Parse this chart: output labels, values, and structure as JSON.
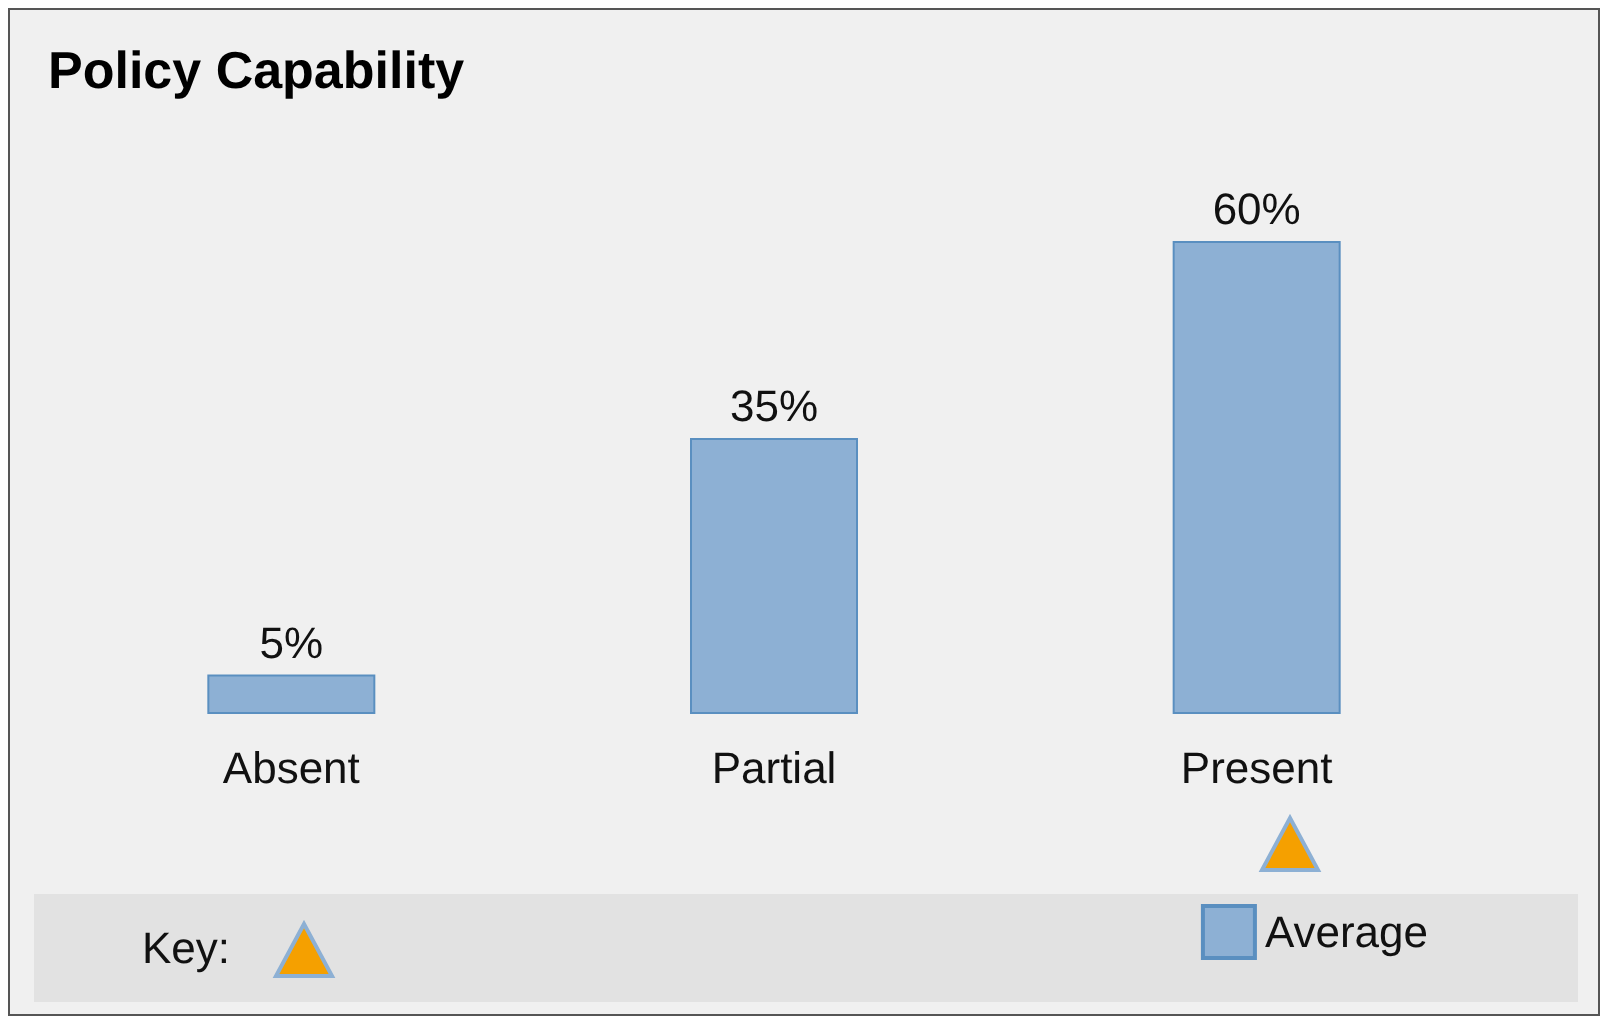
{
  "chart_data": {
    "type": "bar",
    "title": "Policy Capability",
    "categories": [
      "Absent",
      "Partial",
      "Present"
    ],
    "series": [
      {
        "name": "Average",
        "color": "#8db0d4",
        "values": [
          5,
          35,
          60
        ],
        "value_labels": [
          "5%",
          "35%",
          "60%"
        ]
      }
    ],
    "annotations": [
      "Key:"
    ],
    "legend": "bottom"
  }
}
